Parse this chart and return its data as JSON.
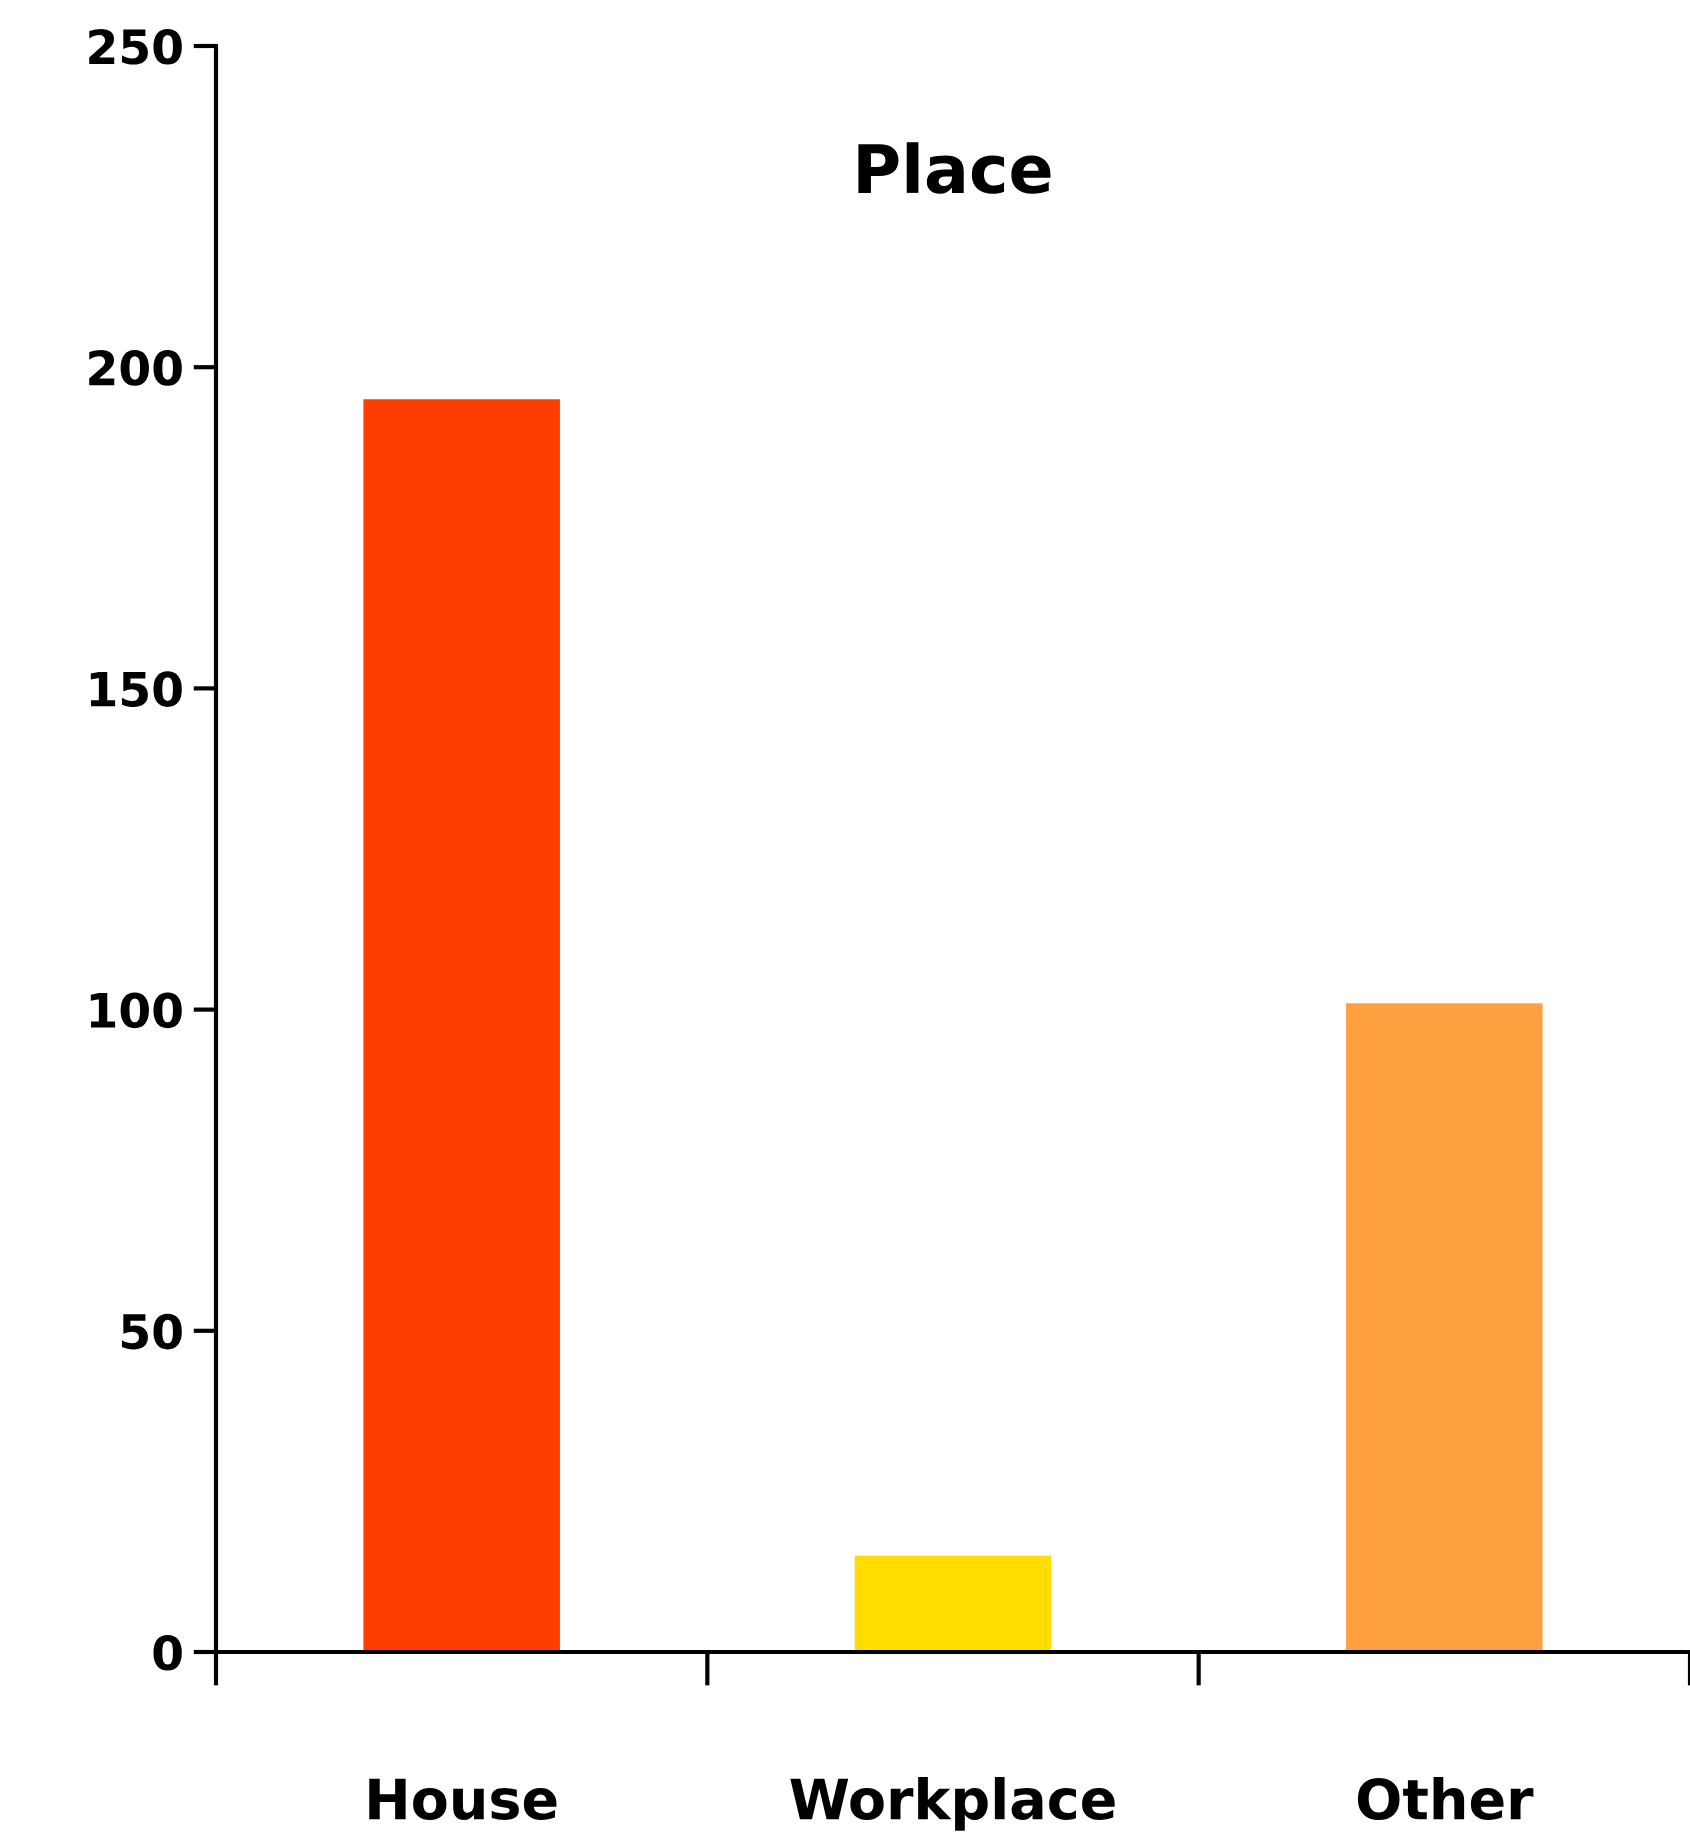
{
  "chart_data": {
    "type": "bar",
    "title": "Place",
    "categories": [
      "House",
      "Workplace",
      "Other"
    ],
    "values": [
      195,
      15,
      101
    ],
    "colors": [
      "#ff3d00",
      "#ffdd00",
      "#ffa040"
    ],
    "ylim": [
      0,
      250
    ],
    "yticks": [
      0,
      50,
      100,
      150,
      200,
      250
    ],
    "grid": false,
    "legend": false
  }
}
